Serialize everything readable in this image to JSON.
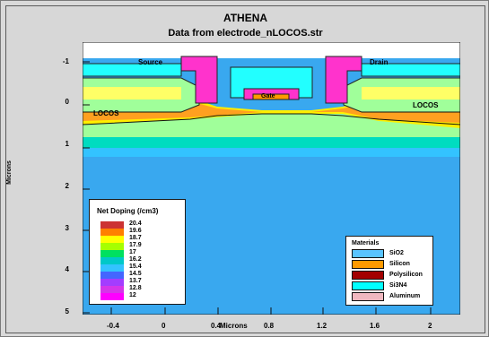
{
  "title": "ATHENA",
  "subtitle": "Data from electrode_nLOCOS.str",
  "axis": {
    "xlabel": "Microns",
    "ylabel": "Microns",
    "xticks": [
      "-0.4",
      "0",
      "0.4",
      "0.8",
      "1.2",
      "1.6",
      "2"
    ],
    "yticks": [
      "-1",
      "0",
      "1",
      "2",
      "3",
      "4",
      "5"
    ]
  },
  "regions": {
    "source": "Source",
    "drain": "Drain",
    "gate": "Gate",
    "locos_left": "LOCOS",
    "locos_right": "LOCOS"
  },
  "legend_doping": {
    "title": "Net Doping (/cm3)",
    "levels": [
      "20.4",
      "19.6",
      "18.7",
      "17.9",
      "17",
      "16.2",
      "15.4",
      "14.5",
      "13.7",
      "12.8",
      "12"
    ],
    "colors": [
      "#cc3333",
      "#ff7f00",
      "#ffff00",
      "#a6ff00",
      "#00e060",
      "#00c8c8",
      "#33c3ff",
      "#4466ff",
      "#a33dff",
      "#d535e8",
      "#ff00ff"
    ]
  },
  "legend_materials": {
    "title": "Materials",
    "items": [
      {
        "label": "SiO2",
        "color": "#59c4ff"
      },
      {
        "label": "Silicon",
        "color": "#ff9a00"
      },
      {
        "label": "Polysilicon",
        "color": "#a30000"
      },
      {
        "label": "Si3N4",
        "color": "#00ffff"
      },
      {
        "label": "Aluminum",
        "color": "#f0b8c0"
      }
    ]
  },
  "colors": {
    "background": "#d7d7d7",
    "substrate": "#39a8ef",
    "aluminum": "#ff33cc",
    "nitride": "#22ffff",
    "oxide_lightgreen": "#a0ff9a",
    "gate_orange": "#ff9a00"
  }
}
